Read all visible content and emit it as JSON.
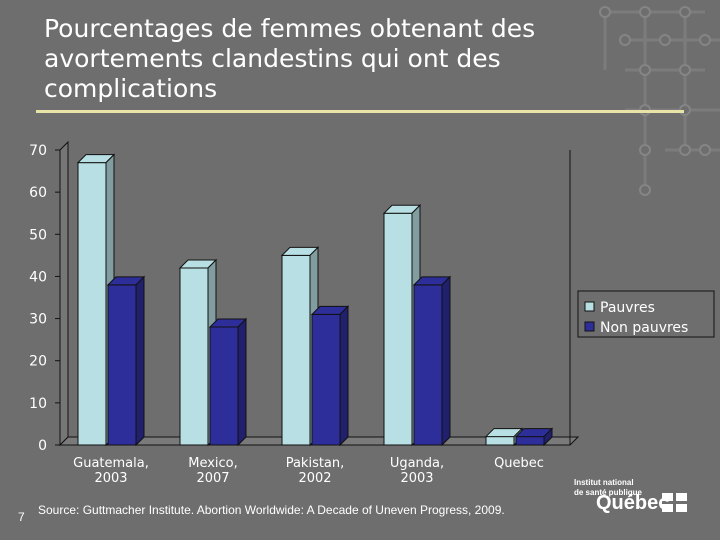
{
  "slide": {
    "title": "Pourcentages de femmes obtenant des avortements clandestins qui ont des complications",
    "source": "Source: Guttmacher Institute. Abortion Worldwide: A Decade of Uneven Progress, 2009.",
    "page_number": "7",
    "logo": {
      "line1": "Institut national",
      "line2": "de santé publique",
      "name": "Québec"
    }
  },
  "chart_data": {
    "type": "bar",
    "title": "",
    "xlabel": "",
    "ylabel": "",
    "ylim": [
      0,
      70
    ],
    "yticks": [
      0,
      10,
      20,
      30,
      40,
      50,
      60,
      70
    ],
    "categories": [
      [
        "Guatemala,",
        "2003"
      ],
      [
        "Mexico,",
        "2007"
      ],
      [
        "Pakistan,",
        "2002"
      ],
      [
        "Uganda,",
        "2003"
      ],
      [
        "Quebec"
      ]
    ],
    "series": [
      {
        "name": "Pauvres",
        "values": [
          67,
          42,
          45,
          55,
          2
        ],
        "color": "#b8e0e4"
      },
      {
        "name": "Non pauvres",
        "values": [
          38,
          28,
          31,
          38,
          2
        ],
        "color": "#2e2e9a"
      }
    ],
    "legend_position": "right",
    "style": "3d-clustered-column",
    "grid": false
  }
}
